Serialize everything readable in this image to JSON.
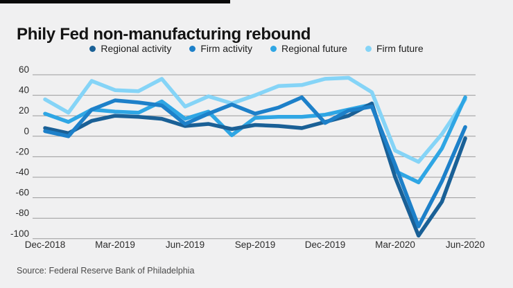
{
  "page": {
    "title": "Phily Fed non-manufacturing rebound",
    "source": "Source: Federal Reserve Bank of Philadelphia"
  },
  "colors": {
    "background": "#f0f0f1",
    "gridline": "#9a9a9a",
    "axis_text": "#2b2b2b",
    "title_text": "#141414",
    "source_text": "#4a4a4a",
    "top_bar": "#0a0a0a",
    "regional_activity": "#1a6096",
    "firm_activity": "#1d80c9",
    "regional_future": "#2fa6e4",
    "firm_future": "#85d4f7"
  },
  "chart_data": {
    "type": "line",
    "title": "Phily Fed non-manufacturing rebound",
    "x": [
      "Dec-2018",
      "Jan-2019",
      "Feb-2019",
      "Mar-2019",
      "Apr-2019",
      "May-2019",
      "Jun-2019",
      "Jul-2019",
      "Aug-2019",
      "Sep-2019",
      "Oct-2019",
      "Nov-2019",
      "Dec-2019",
      "Jan-2020",
      "Feb-2020",
      "Mar-2020",
      "Apr-2020",
      "May-2020",
      "Jun-2020"
    ],
    "x_axis_ticks": [
      "Dec-2018",
      "Mar-2019",
      "Jun-2019",
      "Sep-2019",
      "Dec-2019",
      "Mar-2020",
      "Jun-2020"
    ],
    "y_ticks": [
      60,
      40,
      20,
      0,
      -20,
      -40,
      -60,
      -80,
      -100
    ],
    "ylim": [
      -100,
      60
    ],
    "grid": "horizontal",
    "legend_position": "top",
    "series": [
      {
        "name": "Regional activity",
        "color": "#1a6096",
        "values": [
          8,
          3,
          15,
          20,
          19,
          17,
          10,
          12,
          7,
          11,
          10,
          8,
          14,
          20,
          32,
          -40,
          -97,
          -64,
          -2
        ]
      },
      {
        "name": "Firm activity",
        "color": "#1d80c9",
        "values": [
          5,
          0,
          26,
          35,
          33,
          30,
          12,
          22,
          31,
          22,
          28,
          38,
          13,
          25,
          29,
          -28,
          -88,
          -44,
          9
        ]
      },
      {
        "name": "Regional future",
        "color": "#2fa6e4",
        "values": [
          22,
          14,
          26,
          24,
          23,
          34,
          17,
          24,
          1,
          18,
          19,
          19,
          21,
          26,
          31,
          -34,
          -45,
          -12,
          38
        ]
      },
      {
        "name": "Firm future",
        "color": "#85d4f7",
        "values": [
          36,
          23,
          54,
          45,
          44,
          56,
          29,
          39,
          32,
          40,
          49,
          50,
          56,
          57,
          43,
          -14,
          -25,
          2,
          36
        ]
      }
    ],
    "source": "Source: Federal Reserve Bank of Philadelphia"
  }
}
